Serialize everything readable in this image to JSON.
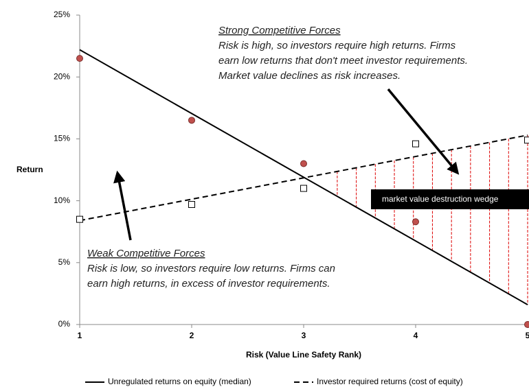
{
  "chart_data": {
    "type": "scatter",
    "x_label": "Risk (Value Line Safety Rank)",
    "y_label": "Return",
    "xlim": [
      1,
      5
    ],
    "xticks": [
      1,
      2,
      3,
      4,
      5
    ],
    "ylim": [
      0,
      25
    ],
    "yticks": [
      {
        "value": 0,
        "label": "0%"
      },
      {
        "value": 5,
        "label": "5%"
      },
      {
        "value": 10,
        "label": "10%"
      },
      {
        "value": 15,
        "label": "15%"
      },
      {
        "value": 20,
        "label": "20%"
      },
      {
        "value": 25,
        "label": "25%"
      }
    ],
    "series": [
      {
        "name": "Unregulated returns on equity (median)",
        "color": "#000000",
        "dash": false,
        "x": [
          1,
          5
        ],
        "values": [
          22.2,
          1.6
        ]
      },
      {
        "name": "Investor required returns (cost of equity)",
        "color": "#000000",
        "dash": true,
        "x": [
          1,
          5
        ],
        "values": [
          8.4,
          15.3
        ]
      },
      {
        "marker": "circle",
        "color": "#c0504d",
        "x": [
          1,
          2,
          3,
          4,
          5
        ],
        "values": [
          21.5,
          16.5,
          13,
          8.3,
          0
        ]
      },
      {
        "marker": "square",
        "color": "#ffffff",
        "x": [
          1,
          2,
          3,
          4,
          5
        ],
        "values": [
          8.5,
          9.7,
          11,
          14.6,
          14.9
        ]
      }
    ],
    "annotations": [
      {
        "title": "Strong  Competitive Forces",
        "lines": [
          "Risk is high, so investors require high returns.  Firms",
          "earn low returns  that don't meet investor requirements.",
          "Market value declines as risk increases."
        ]
      },
      {
        "title": "Weak Competitive Forces",
        "lines": [
          "Risk is low, so investors require  low returns.  Firms can",
          "earn high returns,  in excess of investor requirements."
        ]
      },
      {
        "title": "market value destruction wedge"
      }
    ]
  }
}
